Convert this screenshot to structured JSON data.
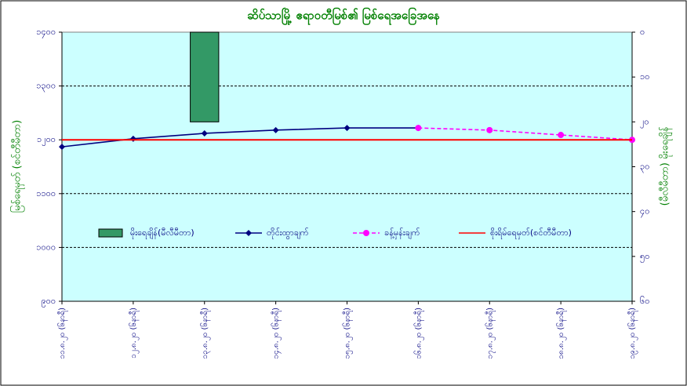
{
  "chart_data": {
    "type": "line",
    "title": "ဆိပ်သာမြို့ ဧရာဝတီမြစ်၏ မြစ်ရေအခြေအနေ",
    "y_label": "မြစ်ရေမှတ် (စင်တီမီတာ)",
    "y2_label": "(မီလီမီတာ) မိုးရေချိန်",
    "categories": [
      "၁၁.၈.၂၀ (၆နာရီ)",
      "၁၂.၈.၂၀ (၆နာရီ)",
      "၁၃.၈.၂၀ (၆နာရီ)",
      "၁၄.၈.၂၀ (၆နာရီ)",
      "၁၅.၈.၂၀ (၆နာရီ)",
      "၁၆.၈.၂၀ (၆နာရီ)",
      "၁၇.၈.၂၀ (၆နာရီ)",
      "၁၈.၈.၂၀ (၆နာရီ)",
      "၁၉.၈.၂၀ (၆နာရီ)"
    ],
    "ylim": [
      900,
      1400
    ],
    "yticks": [
      {
        "value": 900,
        "label": "၉၀၀"
      },
      {
        "value": 1000,
        "label": "၁၀၀၀"
      },
      {
        "value": 1100,
        "label": "၁၁၀၀"
      },
      {
        "value": 1200,
        "label": "၁၂၀၀"
      },
      {
        "value": 1300,
        "label": "၁၃၀၀"
      },
      {
        "value": 1400,
        "label": "၁၄၀၀"
      }
    ],
    "y2lim": [
      60,
      0
    ],
    "y2ticks": [
      {
        "value": 0,
        "label": "၀"
      },
      {
        "value": 10,
        "label": "၁၀"
      },
      {
        "value": 20,
        "label": "၂၀"
      },
      {
        "value": 30,
        "label": "၃၀"
      },
      {
        "value": 40,
        "label": "၄၀"
      },
      {
        "value": 50,
        "label": "၅၀"
      },
      {
        "value": 60,
        "label": "၆၀"
      }
    ],
    "grid": true,
    "series": [
      {
        "name": "မိုးရေချိန်(မီလီမီတာ)",
        "kind": "bar",
        "axis": "y2",
        "color": "#339966",
        "values": [
          null,
          null,
          20,
          null,
          null,
          null,
          null,
          null,
          null
        ]
      },
      {
        "name": "တိုင်းထွာချက်",
        "kind": "line",
        "color": "#000080",
        "values": [
          1187,
          1202,
          1212,
          1218,
          1222,
          1222,
          null,
          null,
          null
        ]
      },
      {
        "name": "ခန့်မှန်းချက်",
        "kind": "dashed",
        "color": "#ff00ff",
        "values": [
          null,
          null,
          null,
          null,
          null,
          1222,
          1218,
          1209,
          1200
        ]
      },
      {
        "name": "စိုးရိမ်ရေမှတ်(စင်တီမီတာ)",
        "kind": "plain",
        "color": "#ff0000",
        "values": [
          1200,
          1200,
          1200,
          1200,
          1200,
          1200,
          1200,
          1200,
          1200
        ]
      }
    ]
  }
}
